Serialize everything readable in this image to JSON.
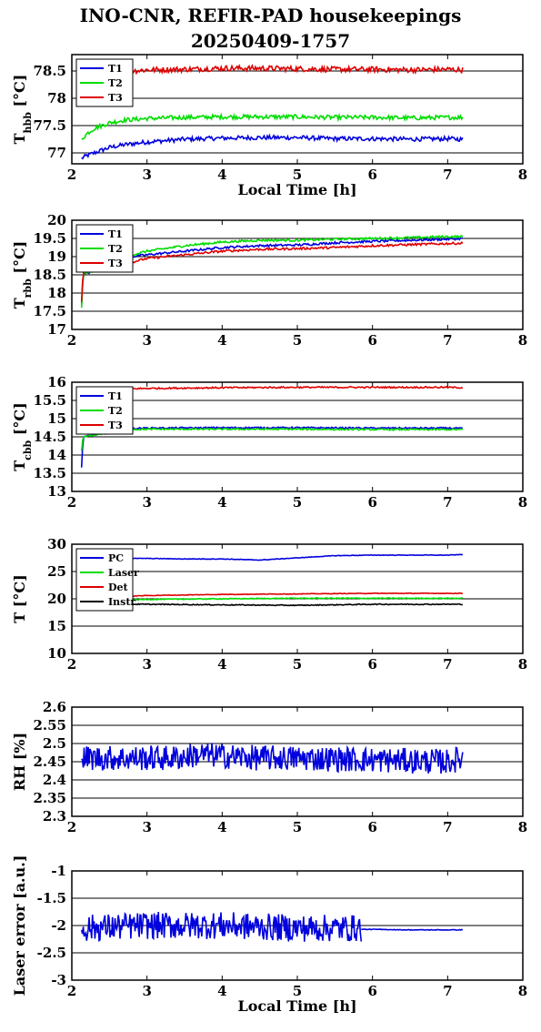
{
  "title_line1": "INO-CNR, REFIR-PAD housekeepings",
  "title_line2": "20250409-1757",
  "colors": {
    "blue": "#0000dd",
    "green": "#00dd00",
    "red": "#dd0000",
    "black": "#000000"
  },
  "chart_data": [
    {
      "type": "line",
      "id": "hbb",
      "ylabel": "T",
      "ylabel_sub": "hbb",
      "ylabel_unit": " [°C]",
      "xlabel": "Local Time [h]",
      "xlim": [
        2,
        8
      ],
      "ylim": [
        76.8,
        78.8
      ],
      "grid": true,
      "legend_position": "top-left",
      "xticks": [
        2,
        3,
        4,
        5,
        6,
        7,
        8
      ],
      "yticks": [
        77,
        77.5,
        78,
        78.5
      ],
      "series": [
        {
          "name": "T1",
          "color": "#0000dd",
          "x": [
            2.13,
            2.2,
            2.3,
            2.5,
            2.7,
            3.0,
            3.5,
            4.0,
            4.5,
            5.0,
            5.5,
            6.0,
            6.5,
            7.0,
            7.2
          ],
          "y": [
            76.9,
            76.95,
            77.0,
            77.1,
            77.15,
            77.2,
            77.25,
            77.27,
            77.28,
            77.28,
            77.26,
            77.26,
            77.25,
            77.26,
            77.25
          ],
          "noise": 0.04
        },
        {
          "name": "T2",
          "color": "#00dd00",
          "x": [
            2.13,
            2.2,
            2.3,
            2.5,
            2.7,
            3.0,
            3.5,
            4.0,
            4.5,
            5.0,
            5.5,
            6.0,
            6.5,
            7.0,
            7.2
          ],
          "y": [
            77.25,
            77.35,
            77.45,
            77.55,
            77.6,
            77.63,
            77.65,
            77.66,
            77.66,
            77.66,
            77.65,
            77.65,
            77.64,
            77.65,
            77.65
          ],
          "noise": 0.04
        },
        {
          "name": "T3",
          "color": "#dd0000",
          "x": [
            2.8,
            3.0,
            3.5,
            4.0,
            4.5,
            5.0,
            5.5,
            6.0,
            6.5,
            7.0,
            7.2
          ],
          "y": [
            78.5,
            78.52,
            78.53,
            78.55,
            78.55,
            78.54,
            78.53,
            78.53,
            78.52,
            78.53,
            78.52
          ],
          "noise": 0.05
        }
      ]
    },
    {
      "type": "line",
      "id": "rbb",
      "ylabel": "T",
      "ylabel_sub": "rbb",
      "ylabel_unit": " [°C]",
      "xlabel": "",
      "xlim": [
        2,
        8
      ],
      "ylim": [
        17,
        20
      ],
      "grid": true,
      "legend_position": "top-left",
      "xticks": [
        2,
        3,
        4,
        5,
        6,
        7,
        8
      ],
      "yticks": [
        17,
        17.5,
        18,
        18.5,
        19,
        19.5,
        20
      ],
      "series": [
        {
          "name": "T1",
          "color": "#0000dd",
          "x": [
            2.13,
            2.15,
            2.8,
            3.0,
            3.5,
            4.0,
            4.5,
            5.0,
            5.5,
            6.0,
            6.5,
            7.0,
            7.2
          ],
          "y": [
            17.7,
            18.5,
            19.0,
            19.05,
            19.15,
            19.25,
            19.3,
            19.32,
            19.38,
            19.42,
            19.45,
            19.48,
            19.5
          ],
          "noise": 0.03
        },
        {
          "name": "T2",
          "color": "#00dd00",
          "x": [
            2.13,
            2.15,
            2.8,
            3.0,
            3.5,
            4.0,
            4.5,
            5.0,
            5.5,
            6.0,
            6.5,
            7.0,
            7.2
          ],
          "y": [
            17.6,
            18.5,
            19.05,
            19.15,
            19.3,
            19.4,
            19.45,
            19.45,
            19.48,
            19.5,
            19.52,
            19.55,
            19.55
          ],
          "noise": 0.03
        },
        {
          "name": "T3",
          "color": "#dd0000",
          "x": [
            2.13,
            2.15,
            2.8,
            3.0,
            3.5,
            4.0,
            4.5,
            5.0,
            5.5,
            6.0,
            6.5,
            7.0,
            7.2
          ],
          "y": [
            17.75,
            18.6,
            18.85,
            18.95,
            19.05,
            19.15,
            19.2,
            19.22,
            19.25,
            19.3,
            19.33,
            19.36,
            19.37
          ],
          "noise": 0.03
        }
      ]
    },
    {
      "type": "line",
      "id": "cbb",
      "ylabel": "T",
      "ylabel_sub": "cbb",
      "ylabel_unit": " [°C]",
      "xlabel": "",
      "xlim": [
        2,
        8
      ],
      "ylim": [
        13,
        16
      ],
      "grid": true,
      "legend_position": "top-left",
      "xticks": [
        2,
        3,
        4,
        5,
        6,
        7,
        8
      ],
      "yticks": [
        13,
        13.5,
        14,
        14.5,
        15,
        15.5,
        16
      ],
      "series": [
        {
          "name": "T1",
          "color": "#0000dd",
          "x": [
            2.13,
            2.15,
            2.8,
            3.0,
            4.0,
            5.0,
            6.0,
            7.0,
            7.2
          ],
          "y": [
            13.65,
            14.5,
            14.73,
            14.74,
            14.75,
            14.75,
            14.74,
            14.74,
            14.73
          ],
          "noise": 0.02
        },
        {
          "name": "T2",
          "color": "#00dd00",
          "x": [
            2.13,
            2.15,
            2.8,
            3.0,
            4.0,
            5.0,
            6.0,
            7.0,
            7.2
          ],
          "y": [
            14.1,
            14.5,
            14.7,
            14.71,
            14.71,
            14.71,
            14.7,
            14.7,
            14.7
          ],
          "noise": 0.02
        },
        {
          "name": "T3",
          "color": "#dd0000",
          "x": [
            2.8,
            3.0,
            4.0,
            5.0,
            6.0,
            7.0,
            7.2
          ],
          "y": [
            15.82,
            15.83,
            15.85,
            15.86,
            15.86,
            15.86,
            15.85
          ],
          "noise": 0.02
        }
      ]
    },
    {
      "type": "line",
      "id": "temps",
      "ylabel": "T [°C]",
      "ylabel_sub": "",
      "ylabel_unit": "",
      "xlabel": "",
      "xlim": [
        2,
        8
      ],
      "ylim": [
        10,
        30
      ],
      "grid": true,
      "legend_position": "top-left",
      "xticks": [
        2,
        3,
        4,
        5,
        6,
        7,
        8
      ],
      "yticks": [
        10,
        15,
        20,
        25,
        30
      ],
      "series": [
        {
          "name": "PC",
          "color": "#0000dd",
          "x": [
            2.8,
            3.0,
            3.5,
            4.0,
            4.5,
            5.0,
            5.5,
            6.0,
            6.5,
            7.0,
            7.2
          ],
          "y": [
            27.4,
            27.4,
            27.3,
            27.3,
            27.1,
            27.5,
            27.9,
            28.0,
            28.0,
            28.0,
            28.1
          ],
          "noise": 0.05
        },
        {
          "name": "Laser",
          "color": "#00dd00",
          "x": [
            2.8,
            3.0,
            4.0,
            5.0,
            6.0,
            7.0,
            7.2
          ],
          "y": [
            19.8,
            19.9,
            20.0,
            20.1,
            20.1,
            20.1,
            20.1
          ],
          "noise": 0.08
        },
        {
          "name": "Det",
          "color": "#dd0000",
          "x": [
            2.8,
            3.0,
            4.0,
            5.0,
            6.0,
            7.0,
            7.2
          ],
          "y": [
            20.5,
            20.6,
            20.8,
            20.9,
            21.0,
            21.0,
            21.0
          ],
          "noise": 0.05
        },
        {
          "name": "Instr",
          "color": "#000000",
          "x": [
            2.8,
            3.0,
            4.0,
            5.0,
            6.0,
            7.0,
            7.2
          ],
          "y": [
            19.0,
            19.0,
            18.9,
            18.8,
            19.0,
            19.0,
            19.0
          ],
          "noise": 0.08
        }
      ]
    },
    {
      "type": "line",
      "id": "rh",
      "ylabel": "RH [%]",
      "ylabel_sub": "",
      "ylabel_unit": "",
      "xlabel": "",
      "xlim": [
        2,
        8
      ],
      "ylim": [
        2.3,
        2.6
      ],
      "grid": true,
      "legend_position": "none",
      "xticks": [
        2,
        3,
        4,
        5,
        6,
        7,
        8
      ],
      "yticks": [
        2.3,
        2.35,
        2.4,
        2.45,
        2.5,
        2.55,
        2.6
      ],
      "series": [
        {
          "name": "",
          "color": "#0000dd",
          "x": [
            2.13,
            3.35,
            3.7,
            4.5,
            5.0,
            6.0,
            7.0,
            7.2
          ],
          "y": [
            2.46,
            2.46,
            2.47,
            2.46,
            2.46,
            2.455,
            2.45,
            2.46
          ],
          "noise": 0.035,
          "dense": true
        }
      ]
    },
    {
      "type": "line",
      "id": "laser",
      "ylabel": "Laser error [a.u.]",
      "ylabel_sub": "",
      "ylabel_unit": "",
      "xlabel": "Local Time [h]",
      "xlim": [
        2,
        8
      ],
      "ylim": [
        -3,
        -1
      ],
      "grid": true,
      "legend_position": "none",
      "xticks": [
        2,
        3,
        4,
        5,
        6,
        7,
        8
      ],
      "yticks": [
        -3,
        -2.5,
        -2,
        -1.5,
        -1
      ],
      "series": [
        {
          "name": "",
          "color": "#0000dd",
          "x": [
            2.13,
            3.0,
            4.0,
            5.0,
            5.85
          ],
          "y": [
            -2.05,
            -2.0,
            -2.0,
            -2.05,
            -2.05
          ],
          "noise": 0.25,
          "dense": true
        },
        {
          "name": "",
          "color": "#0000dd",
          "x": [
            5.85,
            6.0,
            6.5,
            7.0,
            7.2
          ],
          "y": [
            -2.07,
            -2.07,
            -2.08,
            -2.08,
            -2.08
          ],
          "noise": 0.005
        }
      ]
    }
  ]
}
